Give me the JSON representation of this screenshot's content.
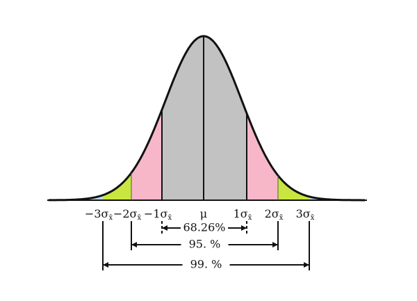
{
  "axis_labels": [
    {
      "main": "−3σ",
      "sub": "x̄"
    },
    {
      "main": "−2σ",
      "sub": "x̄"
    },
    {
      "main": "−1σ",
      "sub": "x̄"
    },
    {
      "main": "μ"
    },
    {
      "main": "1σ",
      "sub": "x̄"
    },
    {
      "main": "2σ",
      "sub": "x̄"
    },
    {
      "main": "3σ",
      "sub": "x̄"
    }
  ],
  "intervals": [
    {
      "label": "68.26%"
    },
    {
      "label": "95. %"
    },
    {
      "label": "99. %"
    }
  ]
}
